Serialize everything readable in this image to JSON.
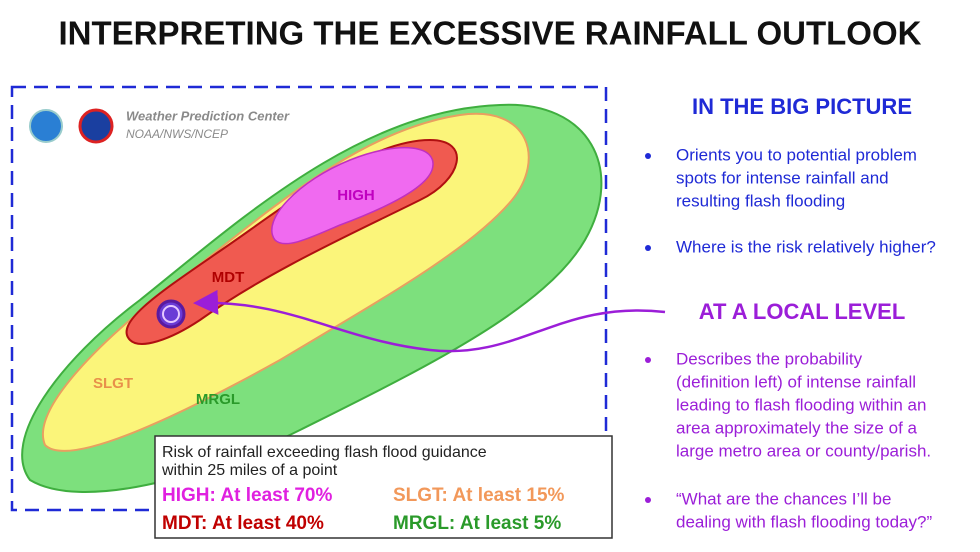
{
  "header": {
    "title": "INTERPRETING THE EXCESSIVE RAINFALL OUTLOOK"
  },
  "map": {
    "org": "Weather Prediction Center",
    "org_sub": "NOAA/NWS/NCEP",
    "zones": {
      "high": "HIGH",
      "mdt": "MDT",
      "slgt": "SLGT",
      "mrgl": "MRGL"
    }
  },
  "legend": {
    "caption": [
      "Risk of rainfall exceeding flash flood guidance",
      "within 25 miles of a point"
    ],
    "items": [
      "HIGH: At least 70%",
      "SLGT: At least 15%",
      "MDT: At least 40%",
      "MRGL: At least 5%"
    ]
  },
  "sections": [
    {
      "heading": "IN THE BIG PICTURE",
      "bullets": [
        [
          "Orients you to potential problem",
          "spots for intense rainfall and",
          "resulting flash flooding"
        ],
        [
          "Where is the risk relatively higher?"
        ]
      ]
    },
    {
      "heading": "AT A LOCAL LEVEL",
      "bullets": [
        [
          "Describes the probability",
          "(definition left) of intense rainfall",
          "leading to flash flooding within an",
          "area approximately the size of a",
          "large metro area or county/parish."
        ],
        [
          "“What are the chances I’ll be",
          "dealing with flash flooding today?”"
        ]
      ]
    }
  ]
}
